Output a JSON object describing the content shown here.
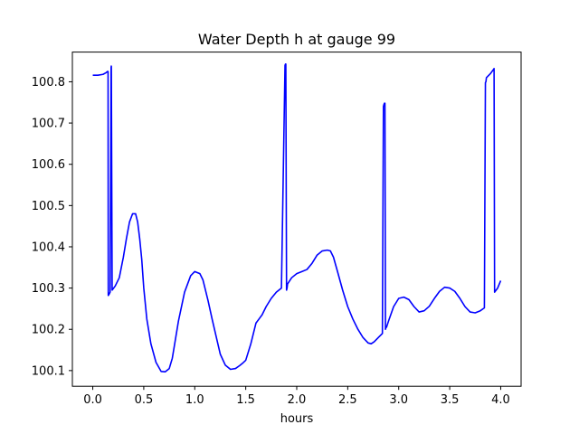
{
  "chart_data": {
    "type": "line",
    "title": "Water Depth h at gauge 99",
    "xlabel": "hours",
    "ylabel": "",
    "xlim": [
      -0.2,
      4.2
    ],
    "ylim": [
      100.062,
      100.872
    ],
    "xticks": [
      0.0,
      0.5,
      1.0,
      1.5,
      2.0,
      2.5,
      3.0,
      3.5,
      4.0
    ],
    "xtick_labels": [
      "0.0",
      "0.5",
      "1.0",
      "1.5",
      "2.0",
      "2.5",
      "3.0",
      "3.5",
      "4.0"
    ],
    "yticks": [
      100.1,
      100.2,
      100.3,
      100.4,
      100.5,
      100.6,
      100.7,
      100.8
    ],
    "ytick_labels": [
      "100.1",
      "100.2",
      "100.3",
      "100.4",
      "100.5",
      "100.6",
      "100.7",
      "100.8"
    ],
    "grid": false,
    "legend": "none",
    "series_color": "#0000ff",
    "series": [
      {
        "x": [
          0.0,
          0.05,
          0.1,
          0.13,
          0.145,
          0.15,
          0.152,
          0.16,
          0.17,
          0.18,
          0.182,
          0.19,
          0.22,
          0.26,
          0.3,
          0.33,
          0.36,
          0.39,
          0.42,
          0.44,
          0.46,
          0.48,
          0.5,
          0.53,
          0.57,
          0.62,
          0.67,
          0.71,
          0.75,
          0.78,
          0.8,
          0.84,
          0.9,
          0.96,
          1.0,
          1.05,
          1.08,
          1.1,
          1.13,
          1.17,
          1.25,
          1.3,
          1.35,
          1.4,
          1.44,
          1.47,
          1.5,
          1.55,
          1.6,
          1.63,
          1.66,
          1.7,
          1.75,
          1.8,
          1.85,
          1.885,
          1.89,
          1.893,
          1.9,
          1.905,
          1.91,
          1.95,
          2.0,
          2.05,
          2.1,
          2.15,
          2.2,
          2.25,
          2.3,
          2.33,
          2.36,
          2.4,
          2.45,
          2.5,
          2.55,
          2.6,
          2.65,
          2.7,
          2.73,
          2.76,
          2.8,
          2.84,
          2.85,
          2.855,
          2.86,
          2.865,
          2.87,
          2.875,
          2.88,
          2.9,
          2.95,
          3.0,
          3.05,
          3.1,
          3.15,
          3.2,
          3.25,
          3.3,
          3.35,
          3.4,
          3.45,
          3.5,
          3.55,
          3.6,
          3.65,
          3.7,
          3.75,
          3.8,
          3.84,
          3.85,
          3.855,
          3.86,
          3.9,
          3.93,
          3.935,
          3.94,
          3.97,
          4.0
        ],
        "values": [
          100.816,
          100.816,
          100.818,
          100.822,
          100.825,
          100.825,
          100.282,
          100.285,
          100.29,
          100.835,
          100.838,
          100.295,
          100.305,
          100.325,
          100.375,
          100.42,
          100.46,
          100.48,
          100.48,
          100.46,
          100.42,
          100.37,
          100.3,
          100.225,
          100.165,
          100.12,
          100.098,
          100.097,
          100.105,
          100.13,
          100.16,
          100.22,
          100.29,
          100.33,
          100.34,
          100.335,
          100.32,
          100.3,
          100.27,
          100.225,
          100.14,
          100.113,
          100.103,
          100.105,
          100.112,
          100.118,
          100.125,
          100.165,
          100.215,
          100.225,
          100.235,
          100.255,
          100.275,
          100.29,
          100.3,
          100.84,
          100.843,
          100.843,
          100.295,
          100.3,
          100.31,
          100.325,
          100.335,
          100.34,
          100.345,
          100.36,
          100.38,
          100.39,
          100.392,
          100.39,
          100.375,
          100.34,
          100.295,
          100.255,
          100.225,
          100.2,
          100.18,
          100.167,
          100.165,
          100.17,
          100.18,
          100.19,
          100.74,
          100.745,
          100.748,
          100.748,
          100.2,
          100.205,
          100.205,
          100.22,
          100.255,
          100.275,
          100.278,
          100.272,
          100.255,
          100.242,
          100.245,
          100.256,
          100.275,
          100.292,
          100.302,
          100.3,
          100.292,
          100.275,
          100.255,
          100.242,
          100.24,
          100.245,
          100.252,
          100.798,
          100.8,
          100.81,
          100.82,
          100.83,
          100.832,
          100.29,
          100.3,
          100.318
        ]
      }
    ]
  }
}
